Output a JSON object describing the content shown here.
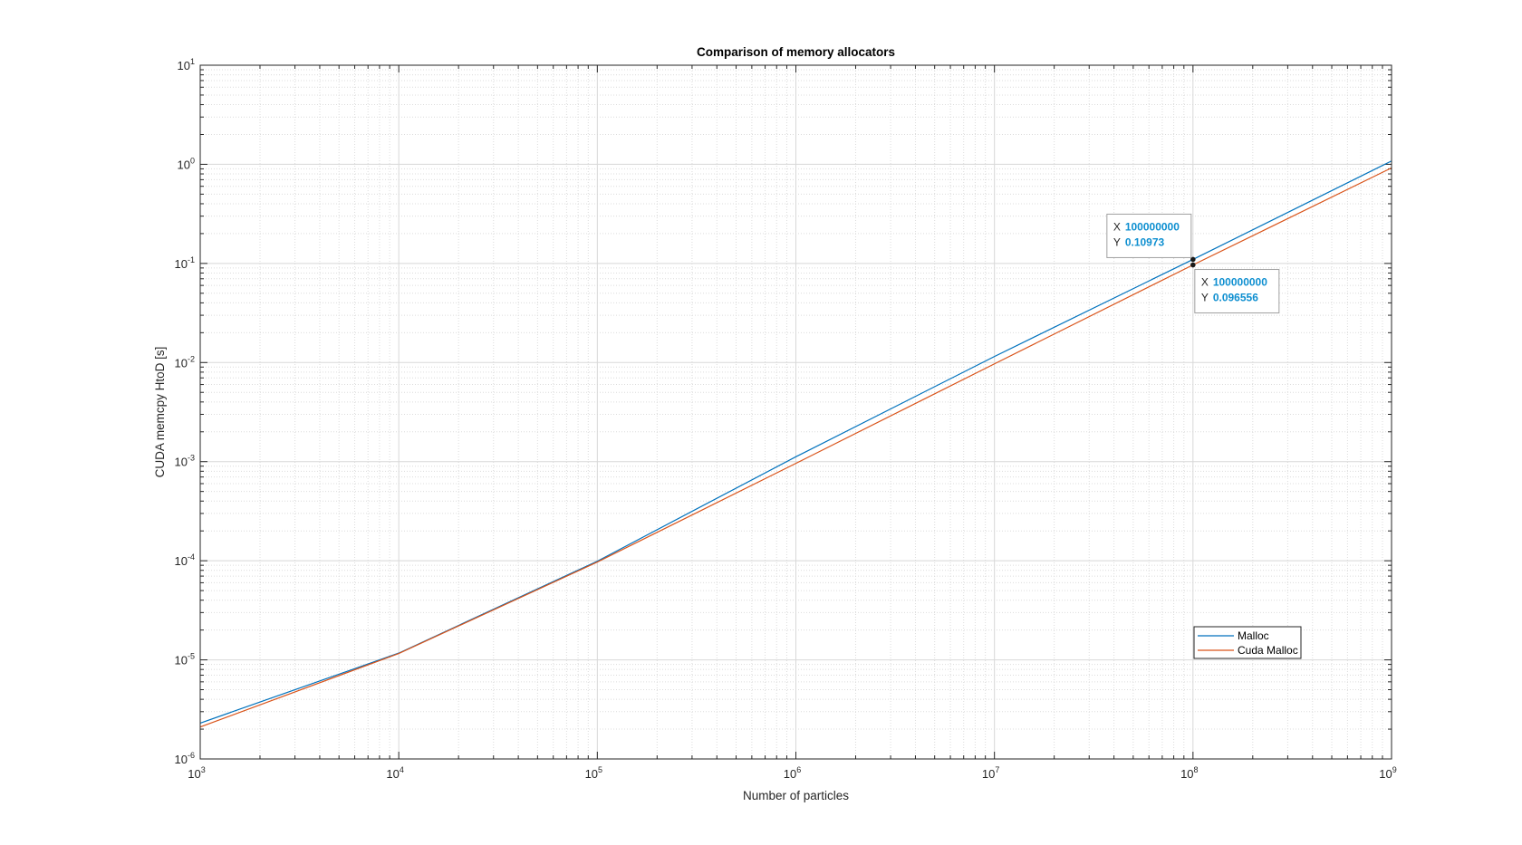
{
  "chart_data": {
    "type": "line",
    "title": "Comparison of memory allocators",
    "xlabel": "Number of particles",
    "ylabel": "CUDA memcpy HtoD [s]",
    "xscale": "log",
    "yscale": "log",
    "xlim": [
      1000,
      1000000000
    ],
    "ylim": [
      1e-06,
      10
    ],
    "grid": "on (major and minor)",
    "legend_location": "bottom-right",
    "x_ticks": [
      {
        "base": "10",
        "exp": "3"
      },
      {
        "base": "10",
        "exp": "4"
      },
      {
        "base": "10",
        "exp": "5"
      },
      {
        "base": "10",
        "exp": "6"
      },
      {
        "base": "10",
        "exp": "7"
      },
      {
        "base": "10",
        "exp": "8"
      },
      {
        "base": "10",
        "exp": "9"
      }
    ],
    "y_ticks": [
      {
        "base": "10",
        "exp": "-6"
      },
      {
        "base": "10",
        "exp": "-5"
      },
      {
        "base": "10",
        "exp": "-4"
      },
      {
        "base": "10",
        "exp": "-3"
      },
      {
        "base": "10",
        "exp": "-2"
      },
      {
        "base": "10",
        "exp": "-1"
      },
      {
        "base": "10",
        "exp": "0"
      },
      {
        "base": "10",
        "exp": "1"
      }
    ],
    "x": [
      1000,
      10000,
      100000,
      1000000,
      10000000,
      100000000,
      1000000000
    ],
    "series": [
      {
        "name": "Malloc",
        "color": "#0072BD",
        "values": [
          2.3e-06,
          1.17e-05,
          9.9e-05,
          0.00112,
          0.0115,
          0.10973,
          1.08
        ]
      },
      {
        "name": "Cuda Malloc",
        "color": "#D95319",
        "values": [
          2.1e-06,
          1.16e-05,
          9.7e-05,
          0.00096,
          0.0097,
          0.096556,
          0.92
        ]
      }
    ],
    "datatips": [
      {
        "series": 0,
        "x": 100000000,
        "y": 0.10973,
        "x_label": "X",
        "y_label": "Y",
        "x_text": "100000000",
        "y_text": "0.10973"
      },
      {
        "series": 1,
        "x": 100000000,
        "y": 0.096556,
        "x_label": "X",
        "y_label": "Y",
        "x_text": "100000000",
        "y_text": "0.096556"
      }
    ]
  }
}
